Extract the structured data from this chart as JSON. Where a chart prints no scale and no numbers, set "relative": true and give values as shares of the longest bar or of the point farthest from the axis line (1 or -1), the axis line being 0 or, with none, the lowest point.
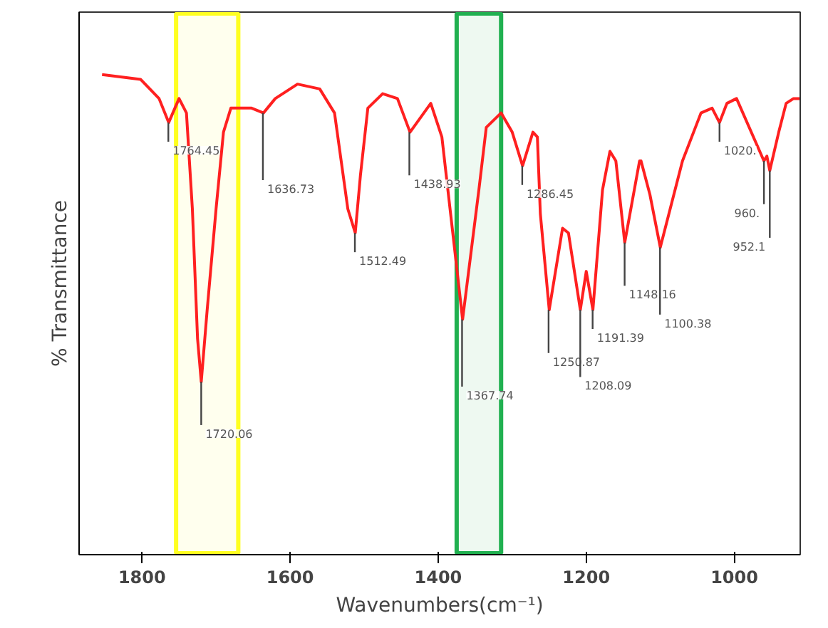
{
  "chart_data": {
    "type": "line",
    "relative": true,
    "xlabel": "Wavenumbers(cm⁻¹)",
    "ylabel": "% Transmittance",
    "xlim": [
      1885,
      911
    ],
    "xticks": [
      1800,
      1600,
      1400,
      1200,
      1000
    ],
    "grid": false,
    "marker": "none",
    "line_style": "solid",
    "series": [
      {
        "color": "#ff2020",
        "x": [
          1854,
          1802,
          1777,
          1764,
          1750,
          1740,
          1732,
          1725,
          1720,
          1712,
          1700,
          1690,
          1680,
          1652,
          1636,
          1620,
          1590,
          1560,
          1540,
          1522,
          1512,
          1505,
          1495,
          1475,
          1455,
          1438,
          1410,
          1395,
          1367,
          1345,
          1335,
          1315,
          1300,
          1286,
          1272,
          1266,
          1262,
          1250,
          1232,
          1224,
          1208,
          1200,
          1191,
          1178,
          1168,
          1160,
          1148,
          1128,
          1126,
          1114,
          1100,
          1070,
          1045,
          1030,
          1020,
          1010,
          997,
          960,
          956,
          952.1,
          940,
          930,
          920,
          912
        ],
        "values": [
          1.0,
          0.99,
          0.95,
          0.9,
          0.95,
          0.92,
          0.72,
          0.45,
          0.36,
          0.51,
          0.72,
          0.88,
          0.93,
          0.93,
          0.92,
          0.95,
          0.98,
          0.97,
          0.92,
          0.72,
          0.67,
          0.79,
          0.93,
          0.96,
          0.95,
          0.88,
          0.94,
          0.87,
          0.49,
          0.76,
          0.89,
          0.92,
          0.88,
          0.81,
          0.88,
          0.87,
          0.71,
          0.51,
          0.68,
          0.67,
          0.51,
          0.59,
          0.51,
          0.76,
          0.84,
          0.82,
          0.65,
          0.82,
          0.82,
          0.75,
          0.64,
          0.82,
          0.92,
          0.93,
          0.9,
          0.94,
          0.95,
          0.82,
          0.83,
          0.8,
          0.88,
          0.94,
          0.95,
          0.95
        ]
      }
    ],
    "bands": [
      {
        "axis": "x",
        "from": 1754,
        "to": 1670,
        "color": "#ffff20"
      },
      {
        "axis": "x",
        "from": 1375,
        "to": 1315,
        "color": "#20b050"
      }
    ],
    "annotations": [
      {
        "text": "1764.45",
        "x": 1764.45,
        "y": 0.9
      },
      {
        "text": "1720.06",
        "x": 1720.06,
        "y": 0.36
      },
      {
        "text": "1636.73",
        "x": 1636.73,
        "y": 0.92
      },
      {
        "text": "1512.49",
        "x": 1512.49,
        "y": 0.67
      },
      {
        "text": "1438.93",
        "x": 1438.93,
        "y": 0.88
      },
      {
        "text": "1367.74",
        "x": 1367.74,
        "y": 0.49
      },
      {
        "text": "1286.45",
        "x": 1286.45,
        "y": 0.81
      },
      {
        "text": "1250.87",
        "x": 1250.87,
        "y": 0.51
      },
      {
        "text": "1208.09",
        "x": 1208.09,
        "y": 0.51
      },
      {
        "text": "1191.39",
        "x": 1191.39,
        "y": 0.51
      },
      {
        "text": "1148.16",
        "x": 1148.16,
        "y": 0.65
      },
      {
        "text": "1100.38",
        "x": 1100.38,
        "y": 0.64
      },
      {
        "text": "1020.",
        "x": 1020,
        "y": 0.9
      },
      {
        "text": "960.",
        "x": 960,
        "y": 0.82
      },
      {
        "text": "952.1",
        "x": 952.1,
        "y": 0.8
      }
    ]
  }
}
